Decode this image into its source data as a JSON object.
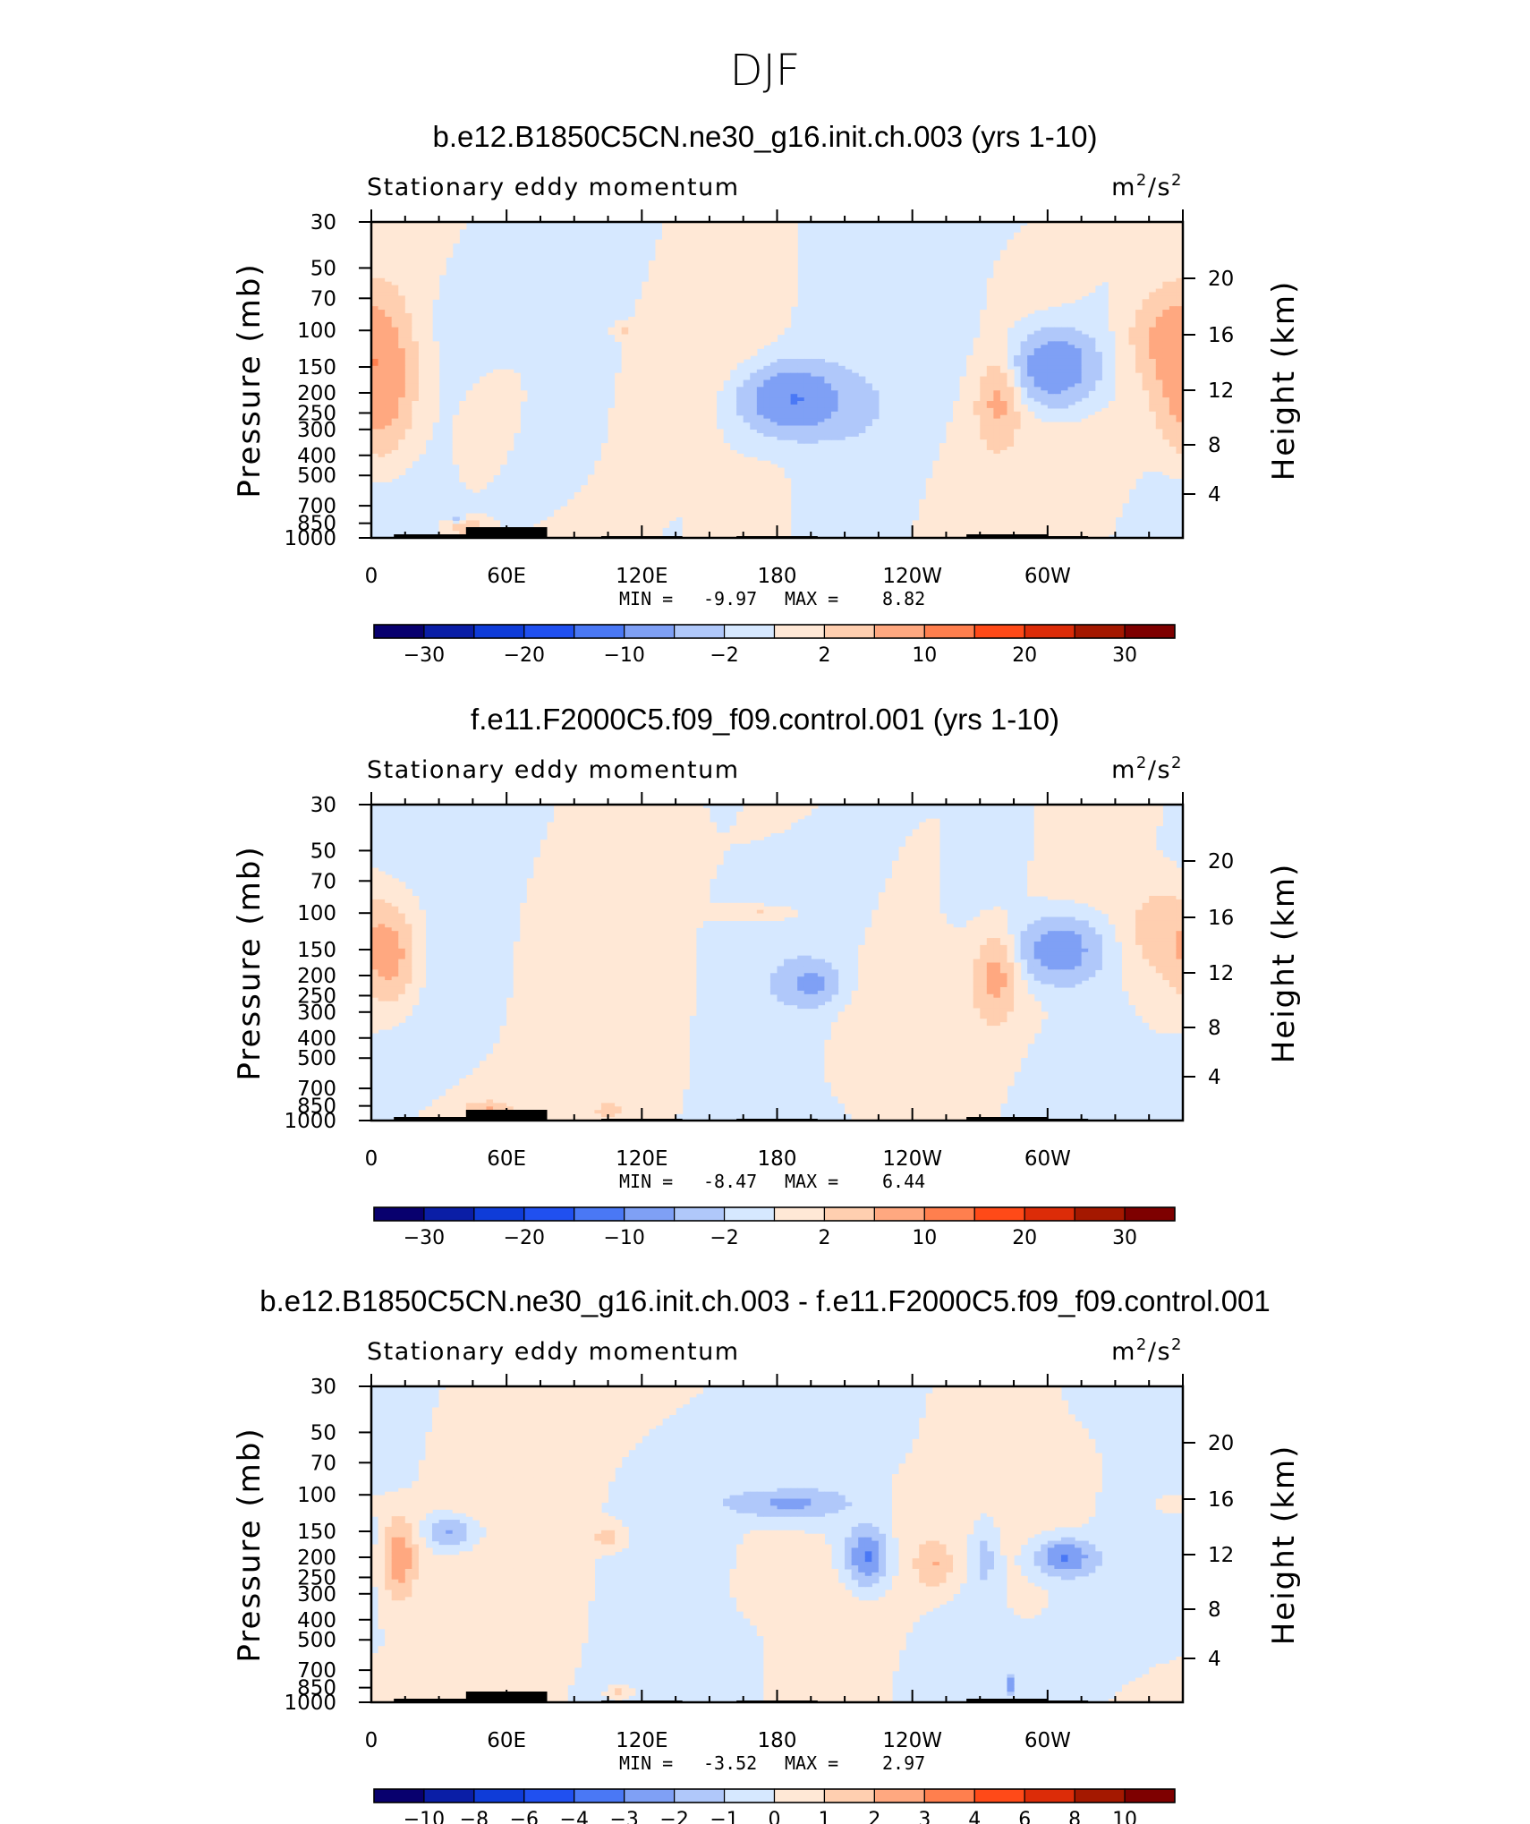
{
  "title": "DJF",
  "colors": {
    "palette": [
      "#08006e",
      "#0a1ea6",
      "#0f3cd8",
      "#2050f0",
      "#4a78f5",
      "#7fa0f5",
      "#b0c8fa",
      "#d6e8ff",
      "#ffe8d6",
      "#ffcfb0",
      "#ffa880",
      "#ff7f4e",
      "#ff4a18",
      "#dc2c08",
      "#a41800",
      "#7e0000"
    ],
    "terrain": "#000000"
  },
  "chart_data": [
    {
      "type": "heatmap",
      "title": "b.e12.B1850C5CN.ne30_g16.init.ch.003 (yrs 1-10)",
      "left_label": "Stationary eddy momentum",
      "units_label": "m²/s²",
      "units_base": "m",
      "units_sup1": "2",
      "units_mid": "/s",
      "units_sup2": "2",
      "ylabel": "Pressure (mb)",
      "ylabel_right": "Height (km)",
      "x_ticks": [
        "0",
        "60E",
        "120E",
        "180",
        "120W",
        "60W"
      ],
      "x_tick_lons": [
        0,
        60,
        120,
        180,
        240,
        300
      ],
      "xlim": [
        0,
        360
      ],
      "y_ticks": [
        "30",
        "50",
        "70",
        "100",
        "150",
        "200",
        "250",
        "300",
        "400",
        "500",
        "700",
        "850",
        "1000"
      ],
      "y_tick_values": [
        30,
        50,
        70,
        100,
        150,
        200,
        250,
        300,
        400,
        500,
        700,
        850,
        1000
      ],
      "ylim": [
        1000,
        30
      ],
      "height_ticks": [
        "20",
        "16",
        "12",
        "8",
        "4"
      ],
      "min_label": "MIN =",
      "min_value": "-9.97",
      "max_label": "MAX =",
      "max_value": "8.82",
      "colorbar_levels": [
        -35,
        -30,
        -25,
        -20,
        -15,
        -10,
        -5,
        -2,
        0,
        2,
        5,
        10,
        15,
        20,
        25,
        30,
        35
      ],
      "colorbar_labels": [
        "-30",
        "-20",
        "-10",
        "-2",
        "2",
        "10",
        "20",
        "30"
      ],
      "colorbar_label_values": [
        -30,
        -20,
        -10,
        -2,
        2,
        10,
        20,
        30
      ],
      "features": [
        {
          "lon": 187,
          "p": 215,
          "wx": 15,
          "wy": 0.25,
          "amp": -9.97
        },
        {
          "lon": 303,
          "p": 150,
          "wx": 12,
          "wy": 0.28,
          "amp": -9.4
        },
        {
          "lon": 4,
          "p": 175,
          "wx": 10,
          "wy": 0.55,
          "amp": 8.82
        },
        {
          "lon": 278,
          "p": 220,
          "wx": 6,
          "wy": 0.3,
          "amp": 5.2
        },
        {
          "lon": 351,
          "p": 105,
          "wx": 11,
          "wy": 0.35,
          "amp": 4.4
        },
        {
          "lon": 112,
          "p": 100,
          "wx": 3,
          "wy": 0.05,
          "amp": 3
        },
        {
          "lon": 42,
          "p": 880,
          "wx": 6,
          "wy": 0.06,
          "amp": 4.5
        },
        {
          "lon": 38,
          "p": 820,
          "wx": 2,
          "wy": 0.04,
          "amp": -3.5
        }
      ]
    },
    {
      "type": "heatmap",
      "title": "f.e11.F2000C5.f09_f09.control.001 (yrs 1-10)",
      "left_label": "Stationary eddy momentum",
      "units_label": "m²/s²",
      "units_base": "m",
      "units_sup1": "2",
      "units_mid": "/s",
      "units_sup2": "2",
      "ylabel": "Pressure (mb)",
      "ylabel_right": "Height (km)",
      "x_ticks": [
        "0",
        "60E",
        "120E",
        "180",
        "120W",
        "60W"
      ],
      "x_tick_lons": [
        0,
        60,
        120,
        180,
        240,
        300
      ],
      "xlim": [
        0,
        360
      ],
      "y_ticks": [
        "30",
        "50",
        "70",
        "100",
        "150",
        "200",
        "250",
        "300",
        "400",
        "500",
        "700",
        "850",
        "1000"
      ],
      "y_tick_values": [
        30,
        50,
        70,
        100,
        150,
        200,
        250,
        300,
        400,
        500,
        700,
        850,
        1000
      ],
      "ylim": [
        1000,
        30
      ],
      "height_ticks": [
        "20",
        "16",
        "12",
        "8",
        "4"
      ],
      "min_label": "MIN =",
      "min_value": "-8.47",
      "max_label": "MAX =",
      "max_value": "6.44",
      "colorbar_levels": [
        -35,
        -30,
        -25,
        -20,
        -15,
        -10,
        -5,
        -2,
        0,
        2,
        5,
        10,
        15,
        20,
        25,
        30,
        35
      ],
      "colorbar_labels": [
        "-30",
        "-20",
        "-10",
        "-2",
        "2",
        "10",
        "20",
        "30"
      ],
      "colorbar_label_values": [
        -30,
        -20,
        -10,
        -2,
        2,
        10,
        20,
        30
      ],
      "features": [
        {
          "lon": 305,
          "p": 150,
          "wx": 12,
          "wy": 0.25,
          "amp": -8.47
        },
        {
          "lon": 196,
          "p": 220,
          "wx": 8,
          "wy": 0.15,
          "amp": -5.2
        },
        {
          "lon": 8,
          "p": 160,
          "wx": 8,
          "wy": 0.35,
          "amp": 6.44
        },
        {
          "lon": 277,
          "p": 200,
          "wx": 6,
          "wy": 0.3,
          "amp": 5.8
        },
        {
          "lon": 350,
          "p": 120,
          "wx": 10,
          "wy": 0.35,
          "amp": 3.6
        },
        {
          "lon": 175,
          "p": 100,
          "wx": 12,
          "wy": 0.06,
          "amp": 3.1
        },
        {
          "lon": 52,
          "p": 880,
          "wx": 7,
          "wy": 0.06,
          "amp": 4.6
        },
        {
          "lon": 105,
          "p": 900,
          "wx": 3,
          "wy": 0.05,
          "amp": 4.2
        }
      ]
    },
    {
      "type": "heatmap",
      "title": "b.e12.B1850C5CN.ne30_g16.init.ch.003 - f.e11.F2000C5.f09_f09.control.001",
      "left_label": "Stationary eddy momentum",
      "units_label": "m²/s²",
      "units_base": "m",
      "units_sup1": "2",
      "units_mid": "/s",
      "units_sup2": "2",
      "ylabel": "Pressure (mb)",
      "ylabel_right": "Height (km)",
      "x_ticks": [
        "0",
        "60E",
        "120E",
        "180",
        "120W",
        "60W"
      ],
      "x_tick_lons": [
        0,
        60,
        120,
        180,
        240,
        300
      ],
      "xlim": [
        0,
        360
      ],
      "y_ticks": [
        "30",
        "50",
        "70",
        "100",
        "150",
        "200",
        "250",
        "300",
        "400",
        "500",
        "700",
        "850",
        "1000"
      ],
      "y_tick_values": [
        30,
        50,
        70,
        100,
        150,
        200,
        250,
        300,
        400,
        500,
        700,
        850,
        1000
      ],
      "ylim": [
        1000,
        30
      ],
      "height_ticks": [
        "20",
        "16",
        "12",
        "8",
        "4"
      ],
      "min_label": "MIN =",
      "min_value": "-3.52",
      "max_label": "MAX =",
      "max_value": "2.97",
      "colorbar_levels": [
        -12,
        -10,
        -8,
        -6,
        -4,
        -3,
        -2,
        -1,
        0,
        1,
        2,
        3,
        4,
        6,
        8,
        10,
        12
      ],
      "colorbar_labels": [
        "-10",
        "-8",
        "-6",
        "-4",
        "-3",
        "-2",
        "-1",
        "0",
        "1",
        "2",
        "3",
        "4",
        "6",
        "8",
        "10"
      ],
      "colorbar_label_values": [
        -10,
        -8,
        -6,
        -4,
        -3,
        -2,
        -1,
        0,
        1,
        2,
        3,
        4,
        6,
        8,
        10
      ],
      "features": [
        {
          "lon": 220,
          "p": 200,
          "wx": 7,
          "wy": 0.25,
          "amp": -3.52
        },
        {
          "lon": 307,
          "p": 200,
          "wx": 9,
          "wy": 0.15,
          "amp": -3.3
        },
        {
          "lon": 185,
          "p": 110,
          "wx": 18,
          "wy": 0.12,
          "amp": -2.3
        },
        {
          "lon": 35,
          "p": 150,
          "wx": 8,
          "wy": 0.12,
          "amp": -2.4
        },
        {
          "lon": 283,
          "p": 820,
          "wx": 1.5,
          "wy": 0.07,
          "amp": -3.0
        },
        {
          "lon": 272,
          "p": 200,
          "wx": 4,
          "wy": 0.3,
          "amp": -1.4
        },
        {
          "lon": 12,
          "p": 200,
          "wx": 6,
          "wy": 0.35,
          "amp": 2.97
        },
        {
          "lon": 106,
          "p": 160,
          "wx": 6,
          "wy": 0.1,
          "amp": 1.6
        },
        {
          "lon": 250,
          "p": 220,
          "wx": 6,
          "wy": 0.2,
          "amp": 1.8
        },
        {
          "lon": 356,
          "p": 110,
          "wx": 8,
          "wy": 0.1,
          "amp": 1.4
        },
        {
          "lon": 110,
          "p": 900,
          "wx": 4,
          "wy": 0.06,
          "amp": 1.8
        }
      ]
    }
  ]
}
